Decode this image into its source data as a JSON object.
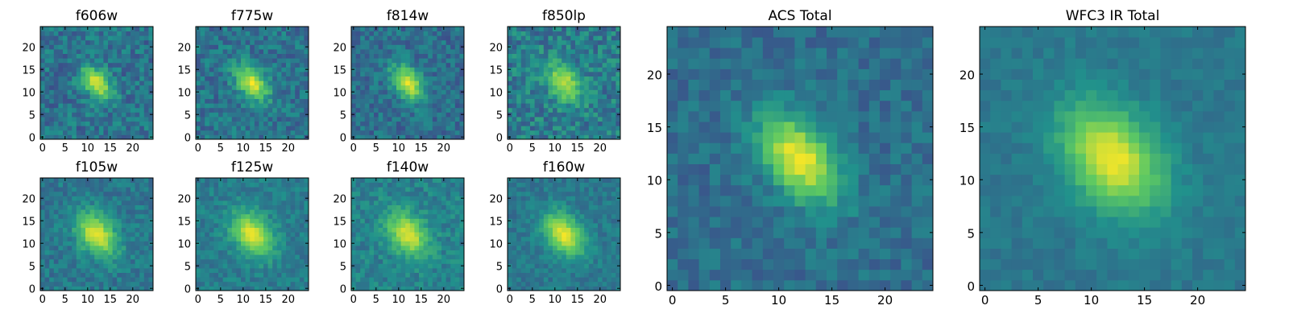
{
  "figure": {
    "colormap": "viridis",
    "colormap_stops": [
      "#440154",
      "#3b528b",
      "#21918c",
      "#5ec962",
      "#fde725"
    ]
  },
  "chart_data": [
    {
      "type": "heatmap",
      "title": "f606w",
      "cmap": "viridis",
      "xlim": [
        -0.5,
        24.5
      ],
      "ylim": [
        -0.5,
        24.5
      ],
      "xticks": [
        0,
        5,
        10,
        15,
        20
      ],
      "yticks": [
        0,
        5,
        10,
        15,
        20
      ],
      "grid": false,
      "source": {
        "center": [
          12,
          12
        ],
        "sigma_major": 3.0,
        "sigma_minor": 1.8,
        "angle_deg": -50,
        "peak": 0.95,
        "background": 0.38,
        "noise": 0.28,
        "cutoff": 3
      }
    },
    {
      "type": "heatmap",
      "title": "f775w",
      "cmap": "viridis",
      "xlim": [
        -0.5,
        24.5
      ],
      "ylim": [
        -0.5,
        24.5
      ],
      "xticks": [
        0,
        5,
        10,
        15,
        20
      ],
      "yticks": [
        0,
        5,
        10,
        15,
        20
      ],
      "grid": false,
      "source": {
        "center": [
          12,
          12
        ],
        "sigma_major": 3.2,
        "sigma_minor": 2.0,
        "angle_deg": -50,
        "peak": 0.95,
        "background": 0.38,
        "noise": 0.26,
        "cutoff": 3
      }
    },
    {
      "type": "heatmap",
      "title": "f814w",
      "cmap": "viridis",
      "xlim": [
        -0.5,
        24.5
      ],
      "ylim": [
        -0.5,
        24.5
      ],
      "xticks": [
        0,
        5,
        10,
        15,
        20
      ],
      "yticks": [
        0,
        5,
        10,
        15,
        20
      ],
      "grid": false,
      "source": {
        "center": [
          12,
          12
        ],
        "sigma_major": 3.2,
        "sigma_minor": 2.0,
        "angle_deg": -50,
        "peak": 0.95,
        "background": 0.36,
        "noise": 0.24,
        "cutoff": 3
      }
    },
    {
      "type": "heatmap",
      "title": "f850lp",
      "cmap": "viridis",
      "xlim": [
        -0.5,
        24.5
      ],
      "ylim": [
        -0.5,
        24.5
      ],
      "xticks": [
        0,
        5,
        10,
        15,
        20
      ],
      "yticks": [
        0,
        5,
        10,
        15,
        20
      ],
      "grid": false,
      "source": {
        "center": [
          12,
          12
        ],
        "sigma_major": 3.4,
        "sigma_minor": 2.2,
        "angle_deg": -50,
        "peak": 0.9,
        "background": 0.42,
        "noise": 0.3,
        "cutoff": 3
      }
    },
    {
      "type": "heatmap",
      "title": "f105w",
      "cmap": "viridis",
      "xlim": [
        -0.5,
        24.5
      ],
      "ylim": [
        -0.5,
        24.5
      ],
      "xticks": [
        0,
        5,
        10,
        15,
        20
      ],
      "yticks": [
        0,
        5,
        10,
        15,
        20
      ],
      "grid": false,
      "source": {
        "center": [
          12,
          12
        ],
        "sigma_major": 3.8,
        "sigma_minor": 2.6,
        "angle_deg": -50,
        "peak": 0.97,
        "background": 0.4,
        "noise": 0.2,
        "cutoff": 3
      }
    },
    {
      "type": "heatmap",
      "title": "f125w",
      "cmap": "viridis",
      "xlim": [
        -0.5,
        24.5
      ],
      "ylim": [
        -0.5,
        24.5
      ],
      "xticks": [
        0,
        5,
        10,
        15,
        20
      ],
      "yticks": [
        0,
        5,
        10,
        15,
        20
      ],
      "grid": false,
      "source": {
        "center": [
          12,
          12
        ],
        "sigma_major": 3.8,
        "sigma_minor": 2.6,
        "angle_deg": -50,
        "peak": 0.97,
        "background": 0.42,
        "noise": 0.18,
        "cutoff": 3
      }
    },
    {
      "type": "heatmap",
      "title": "f140w",
      "cmap": "viridis",
      "xlim": [
        -0.5,
        24.5
      ],
      "ylim": [
        -0.5,
        24.5
      ],
      "xticks": [
        0,
        5,
        10,
        15,
        20
      ],
      "yticks": [
        0,
        5,
        10,
        15,
        20
      ],
      "grid": false,
      "source": {
        "center": [
          12,
          12
        ],
        "sigma_major": 3.8,
        "sigma_minor": 2.6,
        "angle_deg": -50,
        "peak": 0.95,
        "background": 0.44,
        "noise": 0.2,
        "cutoff": 3
      }
    },
    {
      "type": "heatmap",
      "title": "f160w",
      "cmap": "viridis",
      "xlim": [
        -0.5,
        24.5
      ],
      "ylim": [
        -0.5,
        24.5
      ],
      "xticks": [
        0,
        5,
        10,
        15,
        20
      ],
      "yticks": [
        0,
        5,
        10,
        15,
        20
      ],
      "grid": false,
      "source": {
        "center": [
          12,
          12
        ],
        "sigma_major": 3.8,
        "sigma_minor": 2.6,
        "angle_deg": -50,
        "peak": 0.97,
        "background": 0.4,
        "noise": 0.16,
        "cutoff": 3
      }
    },
    {
      "type": "heatmap",
      "title": "ACS Total",
      "cmap": "viridis",
      "xlim": [
        -0.5,
        24.5
      ],
      "ylim": [
        -0.5,
        24.5
      ],
      "xticks": [
        0,
        5,
        10,
        15,
        20
      ],
      "yticks": [
        0,
        5,
        10,
        15,
        20
      ],
      "grid": false,
      "source": {
        "center": [
          12,
          12
        ],
        "sigma_major": 3.4,
        "sigma_minor": 2.1,
        "angle_deg": -50,
        "peak": 0.98,
        "background": 0.36,
        "noise": 0.18,
        "cutoff": 3
      }
    },
    {
      "type": "heatmap",
      "title": "WFC3 IR Total",
      "cmap": "viridis",
      "xlim": [
        -0.5,
        24.5
      ],
      "ylim": [
        -0.5,
        24.5
      ],
      "xticks": [
        0,
        5,
        10,
        15,
        20
      ],
      "yticks": [
        0,
        5,
        10,
        15,
        20
      ],
      "grid": false,
      "source": {
        "center": [
          12,
          12
        ],
        "sigma_major": 4.0,
        "sigma_minor": 2.8,
        "angle_deg": -50,
        "peak": 0.98,
        "background": 0.4,
        "noise": 0.1,
        "cutoff": 3
      }
    }
  ]
}
